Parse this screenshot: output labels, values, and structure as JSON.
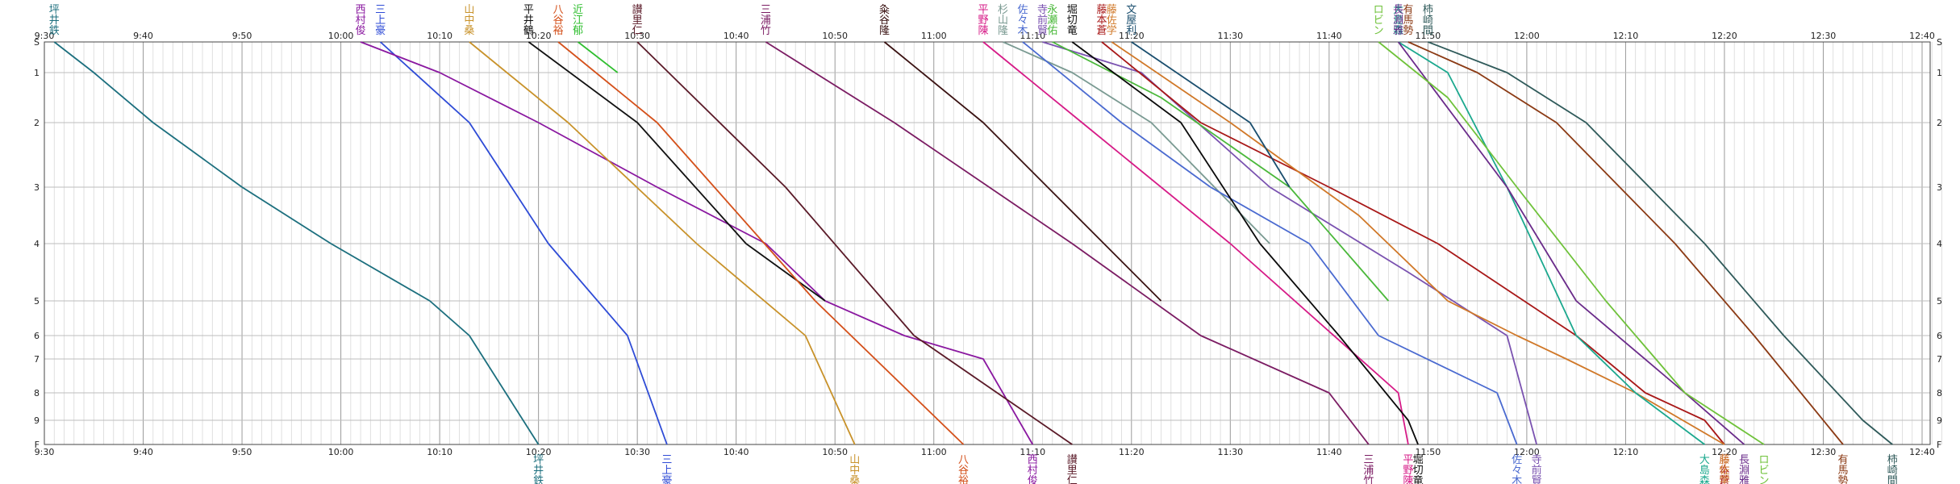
{
  "chart_data": {
    "type": "line",
    "time_ticks": [
      "9:30",
      "9:40",
      "9:50",
      "10:00",
      "10:10",
      "10:20",
      "10:30",
      "10:40",
      "10:50",
      "11:00",
      "11:10",
      "11:20",
      "11:30",
      "11:40",
      "11:50",
      "12:00",
      "12:10",
      "12:20",
      "12:30",
      "12:40"
    ],
    "stations": [
      "S",
      "1",
      "2",
      "3",
      "4",
      "5",
      "6",
      "7",
      "8",
      "9",
      "F"
    ],
    "xlim": [
      "9:30",
      "12:42"
    ],
    "grid": true,
    "series": [
      {
        "name": "坪井鉄",
        "color": "#1c6f7e",
        "start_label": "坪井鉄",
        "end_label": "坪井鉄",
        "points": [
          [
            "9:31",
            0
          ],
          [
            "9:35",
            1
          ],
          [
            "9:41",
            2
          ],
          [
            "9:50",
            3
          ],
          [
            "9:59",
            4
          ],
          [
            "10:09",
            5
          ],
          [
            "10:13",
            6
          ],
          [
            "10:20",
            10
          ]
        ]
      },
      {
        "name": "三上豪",
        "color": "#2e4bd6",
        "start_label": "三上豪",
        "end_label": "三上豪",
        "points": [
          [
            "10:04",
            0
          ],
          [
            "10:13",
            2
          ],
          [
            "10:21",
            4
          ],
          [
            "10:29",
            6
          ],
          [
            "10:33",
            10
          ]
        ]
      },
      {
        "name": "西村俊",
        "color": "#8a18a0",
        "start_label": "西村俊",
        "end_label": "西村俊",
        "points": [
          [
            "10:02",
            0
          ],
          [
            "10:10",
            1
          ],
          [
            "10:20",
            2
          ],
          [
            "10:32",
            3
          ],
          [
            "10:43",
            4
          ],
          [
            "10:49",
            5
          ],
          [
            "10:57",
            6
          ],
          [
            "11:05",
            7
          ],
          [
            "11:10",
            10
          ]
        ]
      },
      {
        "name": "山中桑",
        "color": "#c8922a",
        "start_label": "山中桑",
        "end_label": "山中桑",
        "points": [
          [
            "10:13",
            0
          ],
          [
            "10:23",
            2
          ],
          [
            "10:36",
            4
          ],
          [
            "10:47",
            6
          ],
          [
            "10:52",
            10
          ]
        ]
      },
      {
        "name": "平井鶴",
        "color": "#111111",
        "start_label": "平井鶴",
        "points": [
          [
            "10:19",
            0
          ],
          [
            "10:30",
            2
          ],
          [
            "10:41",
            4
          ],
          [
            "10:49",
            5
          ]
        ]
      },
      {
        "name": "八谷裕",
        "color": "#d4501a",
        "start_label": "八谷裕",
        "end_label": "八谷裕",
        "points": [
          [
            "10:22",
            0
          ],
          [
            "10:32",
            2
          ],
          [
            "10:48",
            5
          ],
          [
            "11:03",
            10
          ]
        ]
      },
      {
        "name": "近江郁",
        "color": "#2fbe2f",
        "start_label": "近江郁",
        "points": [
          [
            "10:24",
            0
          ],
          [
            "10:28",
            1
          ]
        ]
      },
      {
        "name": "讃里仁",
        "color": "#5a1a28",
        "start_label": "讃里仁",
        "end_label": "讃里仁",
        "points": [
          [
            "10:30",
            0
          ],
          [
            "10:45",
            3
          ],
          [
            "10:58",
            6
          ],
          [
            "11:14",
            10
          ]
        ]
      },
      {
        "name": "三浦竹",
        "color": "#7b1c63",
        "start_label": "三浦竹",
        "end_label": "三浦竹",
        "points": [
          [
            "10:43",
            0
          ],
          [
            "10:56",
            2
          ],
          [
            "11:14",
            4
          ],
          [
            "11:27",
            6
          ],
          [
            "11:40",
            8
          ],
          [
            "11:44",
            10
          ]
        ]
      },
      {
        "name": "粂谷隆",
        "color": "#3a1212",
        "start_label": "粂谷隆",
        "points": [
          [
            "10:55",
            0
          ],
          [
            "11:05",
            2
          ],
          [
            "11:23",
            5
          ]
        ]
      },
      {
        "name": "平野陳",
        "color": "#d61a87",
        "start_label": "平野陳",
        "end_label": "平野陳",
        "points": [
          [
            "11:05",
            0
          ],
          [
            "11:15",
            2
          ],
          [
            "11:30",
            4
          ],
          [
            "11:47",
            8
          ],
          [
            "11:48",
            10
          ]
        ]
      },
      {
        "name": "杉山隆",
        "color": "#7a9a92",
        "start_label": "杉山隆",
        "points": [
          [
            "11:07",
            0
          ],
          [
            "11:14",
            1
          ],
          [
            "11:22",
            2
          ],
          [
            "11:34",
            4
          ]
        ]
      },
      {
        "name": "佐々木",
        "color": "#4a6ad0",
        "start_label": "佐々木",
        "end_label": "佐々木",
        "points": [
          [
            "11:09",
            0
          ],
          [
            "11:19",
            2
          ],
          [
            "11:28",
            3
          ],
          [
            "11:38",
            4
          ],
          [
            "11:45",
            6
          ],
          [
            "11:57",
            8
          ],
          [
            "11:59",
            10
          ]
        ]
      },
      {
        "name": "寺前賢",
        "color": "#7a52b0",
        "start_label": "寺前賢",
        "end_label": "寺前賢",
        "points": [
          [
            "11:11",
            0
          ],
          [
            "11:21",
            1
          ],
          [
            "11:34",
            3
          ],
          [
            "11:48",
            4.5
          ],
          [
            "11:58",
            6
          ],
          [
            "12:01",
            10
          ]
        ]
      },
      {
        "name": "永瀬佑",
        "color": "#4ab83a",
        "start_label": "永瀬佑",
        "points": [
          [
            "11:12",
            0
          ],
          [
            "11:23",
            1.5
          ],
          [
            "11:36",
            3
          ],
          [
            "11:46",
            5
          ]
        ]
      },
      {
        "name": "堀切竜",
        "color": "#0a0a0a",
        "start_label": "堀切竜",
        "end_label": "堀切竜",
        "points": [
          [
            "11:14",
            0
          ],
          [
            "11:25",
            2
          ],
          [
            "11:33",
            4
          ],
          [
            "11:41",
            6
          ],
          [
            "11:48",
            9
          ],
          [
            "11:49",
            10
          ]
        ]
      },
      {
        "name": "藤本蒼",
        "color": "#a81818",
        "start_label": "藤本蒼",
        "end_label": "藤本蒼",
        "points": [
          [
            "11:17",
            0
          ],
          [
            "11:27",
            2
          ],
          [
            "11:40",
            3
          ],
          [
            "11:51",
            4
          ],
          [
            "12:05",
            6
          ],
          [
            "12:12",
            8
          ],
          [
            "12:18",
            9
          ],
          [
            "12:20",
            10
          ]
        ]
      },
      {
        "name": "藤佐学",
        "color": "#d07828",
        "start_label": "藤佐学",
        "end_label": "藤佐学",
        "points": [
          [
            "11:18",
            0
          ],
          [
            "11:30",
            2
          ],
          [
            "11:43",
            3.5
          ],
          [
            "11:52",
            5
          ],
          [
            "11:59",
            6
          ],
          [
            "12:04",
            7
          ],
          [
            "12:11",
            8
          ],
          [
            "12:20",
            10
          ]
        ]
      },
      {
        "name": "大島森",
        "color": "#1ba88e",
        "start_label": "大島森",
        "end_label": "大島森",
        "points": [
          [
            "11:47",
            0
          ],
          [
            "11:52",
            1
          ],
          [
            "11:58",
            3
          ],
          [
            "12:05",
            6
          ],
          [
            "12:11",
            8
          ],
          [
            "12:18",
            10
          ]
        ]
      },
      {
        "name": "文屋利",
        "color": "#1a4e6e",
        "start_label": "文屋利",
        "points": [
          [
            "11:20",
            0
          ],
          [
            "11:32",
            2
          ],
          [
            "11:36",
            3
          ]
        ]
      },
      {
        "name": "長淵雅",
        "color": "#6a2b8a",
        "start_label": "長淵雅",
        "end_label": "長淵雅",
        "points": [
          [
            "11:47",
            0
          ],
          [
            "11:58",
            3
          ],
          [
            "12:05",
            5
          ],
          [
            "12:16",
            8
          ],
          [
            "12:22",
            10
          ]
        ]
      },
      {
        "name": "ロビン",
        "color": "#6fc23a",
        "start_label": "ロビン",
        "end_label": "ロビン",
        "points": [
          [
            "11:45",
            0
          ],
          [
            "11:52",
            1.5
          ],
          [
            "11:59",
            3
          ],
          [
            "12:08",
            5
          ],
          [
            "12:16",
            8
          ],
          [
            "12:24",
            10
          ]
        ]
      },
      {
        "name": "有馬勢",
        "color": "#8b3a14",
        "start_label": "有馬勢",
        "end_label": "有馬勢",
        "points": [
          [
            "11:48",
            0
          ],
          [
            "11:55",
            1
          ],
          [
            "12:03",
            2
          ],
          [
            "12:15",
            4
          ],
          [
            "12:23",
            6
          ],
          [
            "12:32",
            10
          ]
        ]
      },
      {
        "name": "柿崎間",
        "color": "#2f5a5a",
        "start_label": "柿崎間",
        "end_label": "柿崎間",
        "points": [
          [
            "11:50",
            0
          ],
          [
            "11:58",
            1
          ],
          [
            "12:06",
            2
          ],
          [
            "12:18",
            4
          ],
          [
            "12:26",
            6
          ],
          [
            "12:34",
            9
          ],
          [
            "12:37",
            10
          ]
        ]
      }
    ]
  }
}
